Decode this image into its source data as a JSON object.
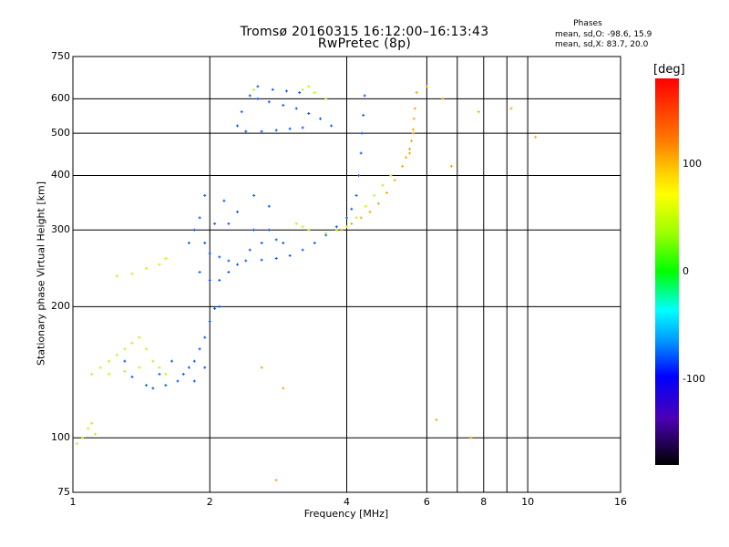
{
  "chart_data": {
    "type": "scatter",
    "title": "Tromsø 20160315 16:12:00–16:13:43",
    "subtitle": "RwPretec (8p)",
    "stats": {
      "title": "Phases",
      "o_line": "mean, sd,O: -98.6, 15.9",
      "x_line": "mean, sd,X:  83.7, 20.0"
    },
    "xlabel": "Frequency [MHz]",
    "ylabel": "Stationary phase Virtual Height [km]",
    "x_scale": "log",
    "y_scale": "log",
    "xlim": [
      1,
      16
    ],
    "ylim": [
      75,
      750
    ],
    "x_ticks": [
      1,
      2,
      4,
      6,
      8,
      10,
      16
    ],
    "y_ticks": [
      75,
      100,
      200,
      300,
      400,
      500,
      600,
      750
    ],
    "x_gridlines": [
      2,
      4,
      6,
      7,
      8,
      9,
      10
    ],
    "y_gridlines": [
      100,
      200,
      300,
      400,
      500,
      600
    ],
    "colorbar": {
      "label": "[deg]",
      "ticks": [
        100,
        0,
        -100
      ],
      "range": [
        -180,
        180
      ]
    },
    "series": [
      {
        "phase_deg": -100,
        "points": [
          [
            2.45,
            610
          ],
          [
            2.55,
            600
          ],
          [
            2.7,
            590
          ],
          [
            2.9,
            580
          ],
          [
            3.1,
            570
          ],
          [
            3.3,
            555
          ],
          [
            3.5,
            540
          ],
          [
            3.7,
            520
          ],
          [
            2.3,
            520
          ],
          [
            2.4,
            505
          ],
          [
            2.6,
            505
          ],
          [
            2.8,
            508
          ],
          [
            3.0,
            512
          ],
          [
            3.2,
            515
          ],
          [
            2.55,
            640
          ],
          [
            2.75,
            630
          ],
          [
            2.95,
            625
          ],
          [
            3.15,
            620
          ],
          [
            2.35,
            560
          ],
          [
            1.8,
            280
          ],
          [
            1.85,
            300
          ],
          [
            1.9,
            320
          ],
          [
            1.95,
            280
          ],
          [
            2.0,
            265
          ],
          [
            2.1,
            260
          ],
          [
            2.2,
            255
          ],
          [
            2.4,
            255
          ],
          [
            2.6,
            256
          ],
          [
            2.8,
            258
          ],
          [
            3.0,
            262
          ],
          [
            3.2,
            270
          ],
          [
            3.4,
            280
          ],
          [
            3.6,
            292
          ],
          [
            3.8,
            305
          ],
          [
            4.0,
            320
          ],
          [
            4.1,
            335
          ],
          [
            4.2,
            360
          ],
          [
            4.25,
            400
          ],
          [
            4.3,
            450
          ],
          [
            4.32,
            500
          ],
          [
            4.35,
            550
          ],
          [
            4.38,
            610
          ],
          [
            1.9,
            240
          ],
          [
            2.0,
            230
          ],
          [
            2.1,
            230
          ],
          [
            2.2,
            240
          ],
          [
            2.3,
            250
          ],
          [
            2.45,
            270
          ],
          [
            2.6,
            280
          ],
          [
            2.8,
            285
          ],
          [
            2.05,
            310
          ],
          [
            2.2,
            310
          ],
          [
            2.5,
            300
          ],
          [
            2.7,
            300
          ],
          [
            2.9,
            280
          ],
          [
            1.95,
            360
          ],
          [
            2.15,
            350
          ],
          [
            2.3,
            330
          ],
          [
            2.5,
            360
          ],
          [
            2.7,
            340
          ],
          [
            1.5,
            130
          ],
          [
            1.6,
            132
          ],
          [
            1.7,
            135
          ],
          [
            1.75,
            140
          ],
          [
            1.8,
            145
          ],
          [
            1.85,
            150
          ],
          [
            1.9,
            160
          ],
          [
            1.95,
            170
          ],
          [
            2.0,
            185
          ],
          [
            2.05,
            198
          ],
          [
            2.1,
            200
          ],
          [
            1.65,
            150
          ],
          [
            1.55,
            140
          ],
          [
            1.45,
            132
          ],
          [
            1.35,
            138
          ],
          [
            1.3,
            150
          ],
          [
            1.85,
            135
          ],
          [
            1.95,
            145
          ]
        ]
      },
      {
        "phase_deg": 80,
        "points": [
          [
            1.05,
            100
          ],
          [
            1.08,
            105
          ],
          [
            1.1,
            108
          ],
          [
            1.12,
            102
          ],
          [
            1.02,
            97
          ],
          [
            1.1,
            140
          ],
          [
            1.15,
            145
          ],
          [
            1.2,
            150
          ],
          [
            1.25,
            155
          ],
          [
            1.3,
            160
          ],
          [
            1.35,
            165
          ],
          [
            1.4,
            170
          ],
          [
            1.45,
            160
          ],
          [
            1.5,
            150
          ],
          [
            1.55,
            145
          ],
          [
            1.2,
            140
          ],
          [
            1.3,
            142
          ],
          [
            1.4,
            145
          ],
          [
            1.6,
            140
          ],
          [
            1.25,
            235
          ],
          [
            1.35,
            238
          ],
          [
            1.45,
            245
          ],
          [
            1.55,
            250
          ],
          [
            1.6,
            258
          ],
          [
            3.1,
            310
          ],
          [
            3.2,
            305
          ],
          [
            3.3,
            300
          ],
          [
            3.6,
            295
          ],
          [
            3.8,
            300
          ],
          [
            4.0,
            305
          ],
          [
            4.2,
            320
          ],
          [
            4.4,
            340
          ],
          [
            4.6,
            360
          ],
          [
            4.8,
            380
          ],
          [
            5.0,
            400
          ],
          [
            3.2,
            630
          ],
          [
            3.4,
            620
          ],
          [
            3.6,
            600
          ],
          [
            3.3,
            640
          ],
          [
            2.5,
            630
          ]
        ]
      },
      {
        "phase_deg": 130,
        "points": [
          [
            3.9,
            300
          ],
          [
            4.1,
            310
          ],
          [
            4.3,
            320
          ],
          [
            4.5,
            330
          ],
          [
            4.7,
            345
          ],
          [
            4.9,
            365
          ],
          [
            5.1,
            390
          ],
          [
            5.3,
            420
          ],
          [
            5.5,
            450
          ],
          [
            5.55,
            480
          ],
          [
            5.6,
            510
          ],
          [
            5.62,
            540
          ],
          [
            5.65,
            570
          ],
          [
            5.7,
            620
          ],
          [
            5.5,
            460
          ],
          [
            5.4,
            440
          ],
          [
            5.6,
            500
          ],
          [
            6.5,
            600
          ],
          [
            9.2,
            570
          ],
          [
            10.4,
            490
          ],
          [
            7.8,
            560
          ],
          [
            6.8,
            420
          ],
          [
            6.0,
            640
          ],
          [
            6.3,
            110
          ],
          [
            7.5,
            100
          ],
          [
            2.8,
            80
          ],
          [
            2.9,
            130
          ],
          [
            2.6,
            145
          ]
        ]
      }
    ]
  }
}
